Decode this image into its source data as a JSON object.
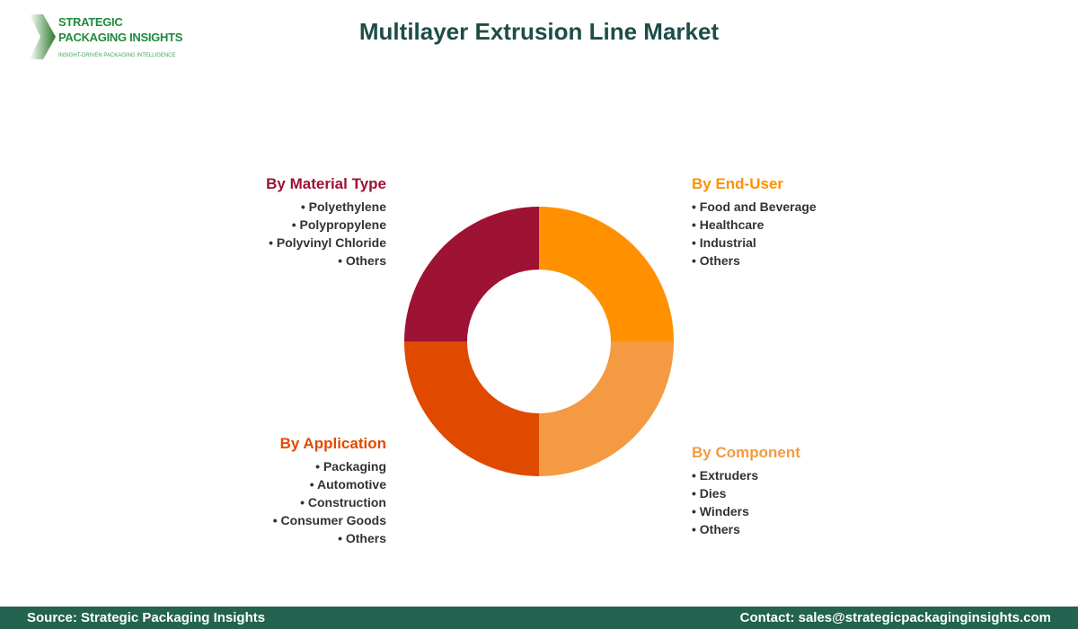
{
  "logo": {
    "line1": "STRATEGIC",
    "line2": "PACKAGING INSIGHTS",
    "tagline": "INSIGHT-DRIVEN PACKAGING INTELLIGENCE"
  },
  "title": "Multilayer Extrusion Line Market",
  "segments": [
    {
      "name": "By Material Type",
      "color": "#9E1233",
      "items": [
        "Polyethylene",
        "Polypropylene",
        "Polyvinyl Chloride",
        "Others"
      ]
    },
    {
      "name": "By End-User",
      "color": "#FF9000",
      "items": [
        "Food and Beverage",
        "Healthcare",
        "Industrial",
        "Others"
      ]
    },
    {
      "name": "By Application",
      "color": "#E04A00",
      "items": [
        "Packaging",
        "Automotive",
        "Construction",
        "Consumer Goods",
        "Others"
      ]
    },
    {
      "name": "By Component",
      "color": "#F49A42",
      "items": [
        "Extruders",
        "Dies",
        "Winders",
        "Others"
      ]
    }
  ],
  "footer": {
    "source": "Source: Strategic Packaging Insights",
    "contact": "Contact: sales@strategicpackaginginsights.com"
  }
}
